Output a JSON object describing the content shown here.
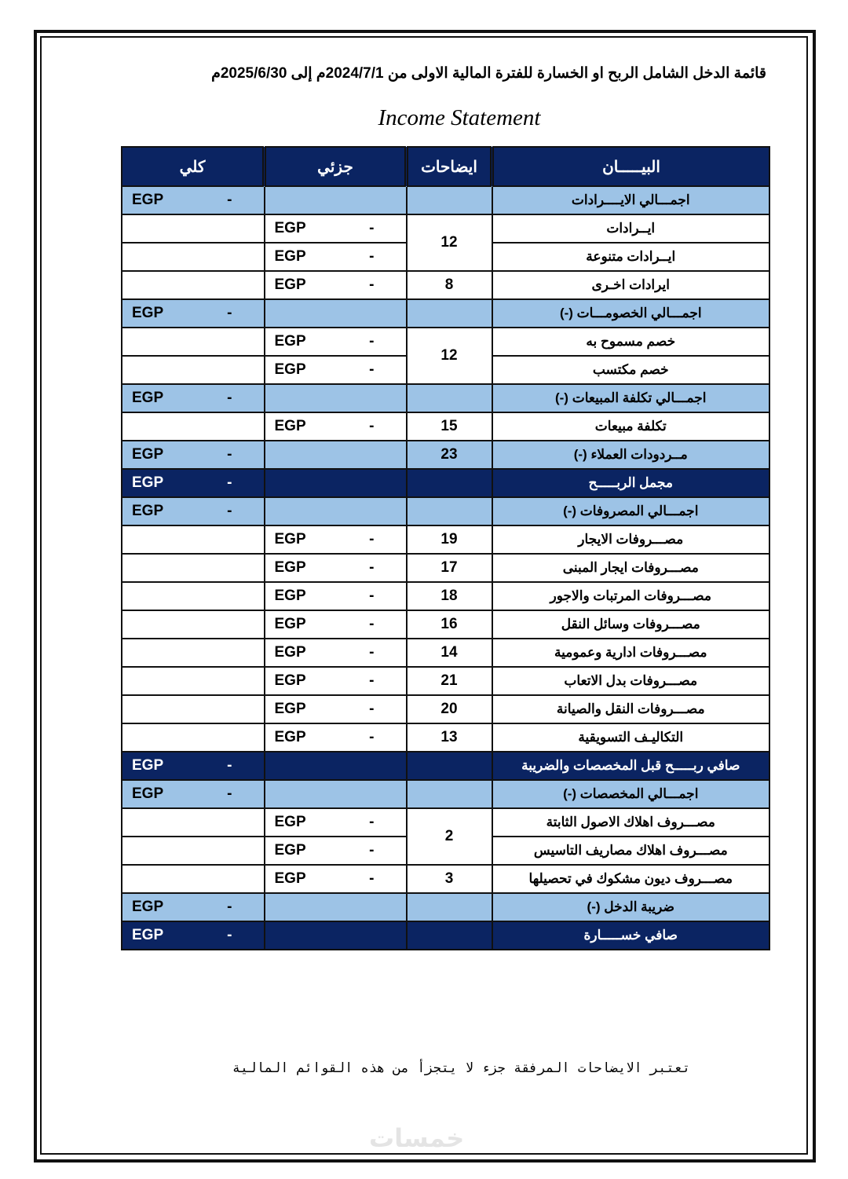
{
  "title": "قائمة الدخل الشامل الربح او الخسارة للفترة المالية الاولى من 2024/7/1م إلى 2025/6/30م",
  "subtitle": "Income Statement",
  "colors": {
    "header_navy": "#0b2462",
    "total_blue": "#9dc3e6"
  },
  "table": {
    "headers": {
      "kolli": "كلي",
      "juzi": "جزئي",
      "notes": "ايضاحات",
      "description": "البيـــــان"
    },
    "currency": "EGP",
    "dash": "-",
    "rows": [
      {
        "type": "total",
        "description": "اجمـــالي الايــــرادات",
        "note": ""
      },
      {
        "type": "item",
        "description": "ايــرادات",
        "note": "12",
        "note_rows": 2
      },
      {
        "type": "item",
        "description": "ايــرادات متنوعة",
        "note_merged": true
      },
      {
        "type": "item",
        "description": "ايرادات اخـرى",
        "note": "8"
      },
      {
        "type": "total",
        "description": "اجمـــالي الخصومـــات (-)",
        "note": ""
      },
      {
        "type": "item",
        "description": "خصم مسموح به",
        "note": "12",
        "note_rows": 2
      },
      {
        "type": "item",
        "description": "خصم مكتسب",
        "note_merged": true
      },
      {
        "type": "total",
        "description": "اجمـــالي تكلفة المبيعات (-)",
        "note": ""
      },
      {
        "type": "item",
        "description": "تكلفة مبيعات",
        "note": "15"
      },
      {
        "type": "total",
        "description": "مــردودات العملاء (-)",
        "note": "23"
      },
      {
        "type": "dark",
        "description": "مجمل الربـــــح",
        "note": ""
      },
      {
        "type": "total",
        "description": "اجمـــالي المصروفات (-)",
        "note": ""
      },
      {
        "type": "item",
        "description": "مصـــروفات الايجار",
        "note": "19"
      },
      {
        "type": "item",
        "description": "مصـــروفات ايجار المبنى",
        "note": "17"
      },
      {
        "type": "item",
        "description": "مصـــروفات المرتبات والاجور",
        "note": "18"
      },
      {
        "type": "item",
        "description": "مصـــروفات وسائل النقل",
        "note": "16"
      },
      {
        "type": "item",
        "description": "مصـــروفات ادارية وعمومية",
        "note": "14"
      },
      {
        "type": "item",
        "description": "مصـــروفات بدل الاتعاب",
        "note": "21"
      },
      {
        "type": "item",
        "description": "مصـــروفات النقل والصيانة",
        "note": "20"
      },
      {
        "type": "item",
        "description": "التكاليـف التسويقية",
        "note": "13"
      },
      {
        "type": "dark",
        "description": "صافي ربـــــح قبل المخصصات والضريبة",
        "note": ""
      },
      {
        "type": "total",
        "description": "اجمـــالي المخصصات (-)",
        "note": ""
      },
      {
        "type": "item",
        "description": "مصـــروف اهلاك الاصول الثابتة",
        "note": "2",
        "note_rows": 2
      },
      {
        "type": "item",
        "description": "مصـــروف اهلاك مصاريف التاسيس",
        "note_merged": true
      },
      {
        "type": "item",
        "description": "مصـــروف ديون مشكوك في تحصيلها",
        "note": "3"
      },
      {
        "type": "total",
        "description": "ضريبة الدخل (-)",
        "note": ""
      },
      {
        "type": "dark",
        "description": "صافي خســـــارة",
        "note": ""
      }
    ]
  },
  "footer": "تعتبر الايضاحات المرفقة جزء لا يتجزأ من هذه القوائم المالية",
  "watermark": "خمسات"
}
